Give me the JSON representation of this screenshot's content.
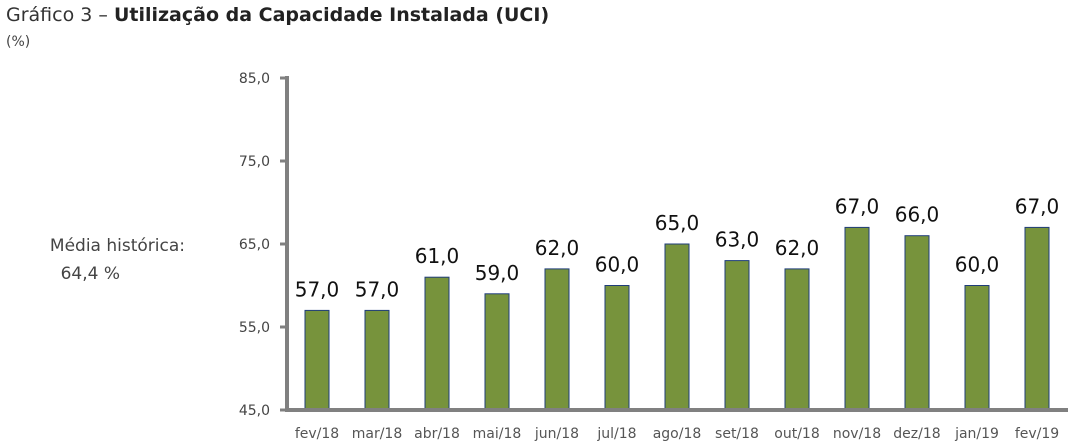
{
  "chart_data": {
    "type": "bar",
    "title_prefix": "Gráfico 3 –",
    "title": "Utilização da Capacidade Instalada (UCI)",
    "unit": "(%)",
    "categories": [
      "fev/18",
      "mar/18",
      "abr/18",
      "mai/18",
      "jun/18",
      "jul/18",
      "ago/18",
      "set/18",
      "out/18",
      "nov/18",
      "dez/18",
      "jan/19",
      "fev/19"
    ],
    "values": [
      57.0,
      57.0,
      61.0,
      59.0,
      62.0,
      60.0,
      65.0,
      63.0,
      62.0,
      67.0,
      66.0,
      60.0,
      67.0
    ],
    "data_labels": [
      "57,0",
      "57,0",
      "61,0",
      "59,0",
      "62,0",
      "60,0",
      "65,0",
      "63,0",
      "62,0",
      "67,0",
      "66,0",
      "60,0",
      "67,0"
    ],
    "ylim": [
      45,
      85
    ],
    "yticks": [
      45,
      55,
      65,
      75,
      85
    ],
    "ytick_labels": [
      "45,0",
      "55,0",
      "65,0",
      "75,0",
      "85,0"
    ],
    "grid": false,
    "annotation": {
      "line1": "Média histórica:",
      "line2": "64,4 %"
    },
    "colors": {
      "bar": "#77933c",
      "bar_edge": "#1f3d7a",
      "axis": "#808080"
    }
  }
}
